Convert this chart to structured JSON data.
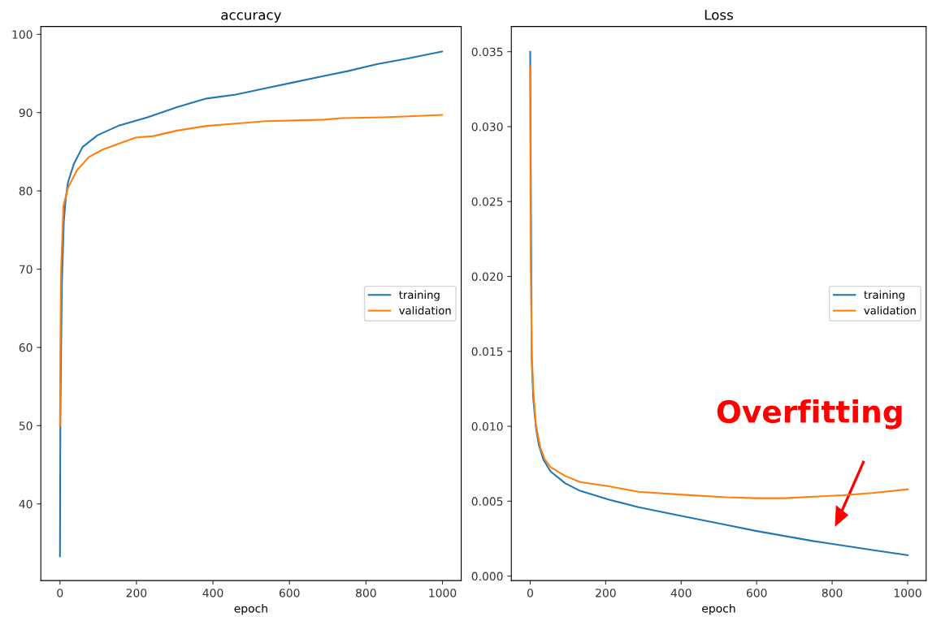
{
  "chart_data": [
    {
      "type": "line",
      "title": "accuracy",
      "xlabel": "epoch",
      "xlim": [
        -50,
        1049
      ],
      "ylim": [
        30.2,
        101
      ],
      "xticks": [
        0,
        200,
        400,
        600,
        800,
        1000
      ],
      "yticks": [
        40,
        50,
        60,
        70,
        80,
        90,
        100
      ],
      "grid": false,
      "legend": "center right",
      "series": [
        {
          "name": "training",
          "color": "#1f77b4",
          "x": [
            0,
            1,
            2,
            5,
            10,
            15,
            21,
            36,
            59,
            98,
            152,
            229,
            306,
            383,
            460,
            537,
            614,
            691,
            752,
            829,
            907,
            999
          ],
          "values": [
            33.3,
            50,
            55,
            68,
            76,
            79,
            81.1,
            83.4,
            85.6,
            87.1,
            88.3,
            89.4,
            90.7,
            91.8,
            92.3,
            93.1,
            93.9,
            94.7,
            95.3,
            96.2,
            96.9,
            97.8
          ]
        },
        {
          "name": "validation",
          "color": "#ff7f0e",
          "x": [
            0,
            1,
            3,
            9,
            21,
            44,
            75,
            113,
            152,
            198,
            244,
            306,
            383,
            460,
            537,
            614,
            691,
            737,
            845,
            999
          ],
          "values": [
            50,
            60,
            70,
            78.1,
            80.4,
            82.6,
            84.3,
            85.3,
            86.0,
            86.8,
            87.0,
            87.7,
            88.3,
            88.6,
            88.9,
            89.0,
            89.1,
            89.3,
            89.4,
            89.7
          ]
        }
      ]
    },
    {
      "type": "line",
      "title": "Loss",
      "xlabel": "epoch",
      "xlim": [
        -50,
        1049
      ],
      "ylim": [
        -0.0003,
        0.03668
      ],
      "xticks": [
        0,
        200,
        400,
        600,
        800,
        1000
      ],
      "yticks": [
        {
          "value": 0.0,
          "label": "0.000"
        },
        0.005,
        {
          "value": 0.01,
          "label": "0.010"
        },
        0.015,
        {
          "value": 0.02,
          "label": "0.020"
        },
        0.025,
        {
          "value": 0.03,
          "label": "0.030"
        },
        0.035
      ],
      "grid": false,
      "legend": "center right",
      "annotations": [
        "Overfitting"
      ],
      "series": [
        {
          "name": "training",
          "color": "#1f77b4",
          "x": [
            0,
            4,
            8,
            15,
            23,
            35,
            54,
            93,
            132,
            209,
            287,
            403,
            519,
            597,
            752,
            829,
            907,
            1000
          ],
          "values": [
            0.035,
            0.0145,
            0.0119,
            0.00994,
            0.00875,
            0.00777,
            0.00698,
            0.00619,
            0.00569,
            0.0051,
            0.0046,
            0.004,
            0.00342,
            0.00302,
            0.00233,
            0.00204,
            0.00174,
            0.0014
          ]
        },
        {
          "name": "validation",
          "color": "#ff7f0e",
          "x": [
            0,
            1,
            4,
            8,
            15,
            27,
            39,
            54,
            93,
            132,
            209,
            287,
            403,
            519,
            597,
            674,
            752,
            829,
            907,
            1000
          ],
          "values": [
            0.034,
            0.022,
            0.0151,
            0.0125,
            0.0101,
            0.00856,
            0.00777,
            0.00727,
            0.00668,
            0.00628,
            0.00599,
            0.00563,
            0.00543,
            0.00526,
            0.0052,
            0.0052,
            0.0053,
            0.0054,
            0.00555,
            0.00579
          ]
        }
      ]
    }
  ]
}
